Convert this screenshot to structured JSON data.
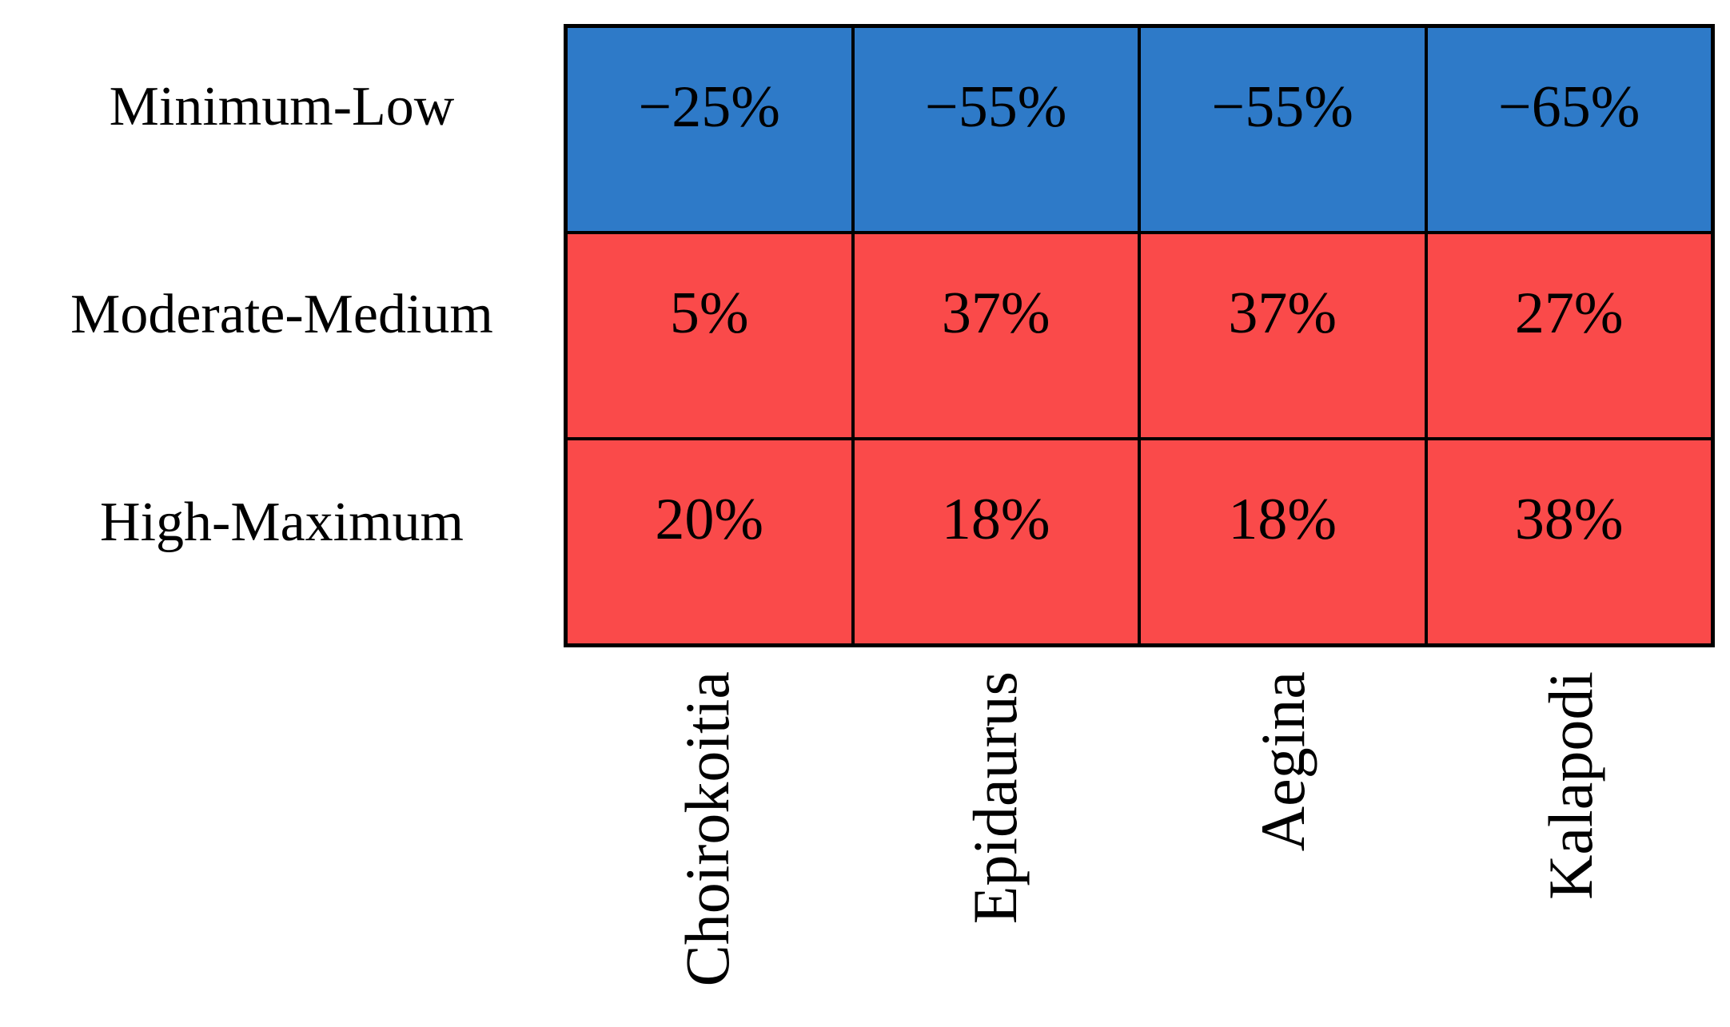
{
  "colors": {
    "negative_cell": "#2E7AC8",
    "positive_cell": "#FA4A4A",
    "grid_border": "#000000",
    "text": "#000000"
  },
  "chart_data": {
    "type": "heatmap",
    "title": "",
    "xlabel": "",
    "ylabel": "",
    "rows": [
      "Minimum-Low",
      "Moderate-Medium",
      "High-Maximum"
    ],
    "columns": [
      "Choirokoitia",
      "Epidaurus",
      "Aegina",
      "Kalapodi"
    ],
    "series": [
      {
        "name": "Minimum-Low",
        "values": [
          -25,
          -55,
          -55,
          -65
        ],
        "display": [
          "−25%",
          "−55%",
          "−55%",
          "−65%"
        ],
        "cell_color": "#2E7AC8"
      },
      {
        "name": "Moderate-Medium",
        "values": [
          5,
          37,
          37,
          27
        ],
        "display": [
          "5%",
          "37%",
          "37%",
          "27%"
        ],
        "cell_color": "#FA4A4A"
      },
      {
        "name": "High-Maximum",
        "values": [
          20,
          18,
          18,
          38
        ],
        "display": [
          "20%",
          "18%",
          "18%",
          "38%"
        ],
        "cell_color": "#FA4A4A"
      }
    ],
    "legend_position": "none",
    "grid": true,
    "value_unit": "%"
  }
}
